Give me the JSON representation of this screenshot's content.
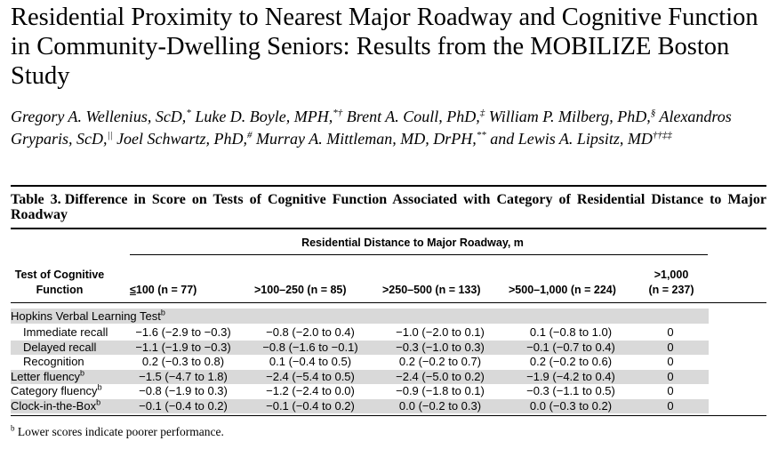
{
  "article": {
    "title": "Residential Proximity to Nearest Major Roadway and Cognitive Function in Community-Dwelling Seniors: Results from the MOBILIZE Boston Study",
    "authors": [
      {
        "name": "Gregory A. Wellenius, ScD,",
        "mark": "*"
      },
      {
        "name": "Luke D. Boyle, MPH,",
        "mark": "*†"
      },
      {
        "name": "Brent A. Coull, PhD,",
        "mark": "‡"
      },
      {
        "name": "William P. Milberg, PhD,",
        "mark": "§"
      },
      {
        "name": "Alexandros Gryparis, ScD,",
        "mark": "||"
      },
      {
        "name": "Joel Schwartz, PhD,",
        "mark": "#"
      },
      {
        "name": "Murray A. Mittleman, MD, DrPH,",
        "mark": "**"
      },
      {
        "name": "and Lewis A. Lipsitz, MD",
        "mark": "††‡‡"
      }
    ]
  },
  "table": {
    "label": "Table 3.",
    "caption": "Difference in Score on Tests of Cognitive Function Associated with Category of Residential Distance to Major Roadway",
    "spanner": "Residential Distance to Major Roadway, m",
    "headers": {
      "test": "Test of Cognitive Function",
      "c1_symbol": "≤",
      "c1_rest": "100 (n = 77)",
      "c2": ">100–250 (n = 85)",
      "c3": ">250–500 (n = 133)",
      "c4": ">500–1,000 (n = 224)",
      "c5_line1": ">1,000",
      "c5_line2": "(n = 237)"
    },
    "group": {
      "label": "Hopkins Verbal Learning Test",
      "mark": "b"
    },
    "rows": [
      {
        "label": "Immediate recall",
        "mark": "",
        "indent": true,
        "values": [
          "−1.6 (−2.9 to −0.3)",
          "−0.8 (−2.0 to 0.4)",
          "−1.0 (−2.0 to 0.1)",
          "0.1 (−0.8 to 1.0)",
          "0"
        ]
      },
      {
        "label": "Delayed recall",
        "mark": "",
        "indent": true,
        "values": [
          "−1.1 (−1.9 to −0.3)",
          "−0.8 (−1.6 to −0.1)",
          "−0.3 (−1.0 to 0.3)",
          "−0.1 (−0.7 to 0.4)",
          "0"
        ]
      },
      {
        "label": "Recognition",
        "mark": "",
        "indent": true,
        "values": [
          "0.2 (−0.3 to 0.8)",
          "0.1 (−0.4 to 0.5)",
          "0.2 (−0.2 to 0.7)",
          "0.2 (−0.2 to 0.6)",
          "0"
        ]
      },
      {
        "label": "Letter fluency",
        "mark": "b",
        "indent": false,
        "values": [
          "−1.5 (−4.7 to 1.8)",
          "−2.4 (−5.4 to 0.5)",
          "−2.4 (−5.0 to 0.2)",
          "−1.9 (−4.2 to 0.4)",
          "0"
        ]
      },
      {
        "label": "Category fluency",
        "mark": "b",
        "indent": false,
        "values": [
          "−0.8 (−1.9 to 0.3)",
          "−1.2 (−2.4 to 0.0)",
          "−0.9 (−1.8 to 0.1)",
          "−0.3 (−1.1 to 0.5)",
          "0"
        ]
      },
      {
        "label": "Clock-in-the-Box",
        "mark": "b",
        "indent": false,
        "values": [
          "−0.1 (−0.4 to 0.2)",
          "−0.1 (−0.4 to 0.2)",
          "0.0 (−0.2 to 0.3)",
          "0.0 (−0.3 to 0.2)",
          "0"
        ]
      }
    ],
    "footnote": {
      "mark": "b",
      "text": "Lower scores indicate poorer performance."
    }
  }
}
